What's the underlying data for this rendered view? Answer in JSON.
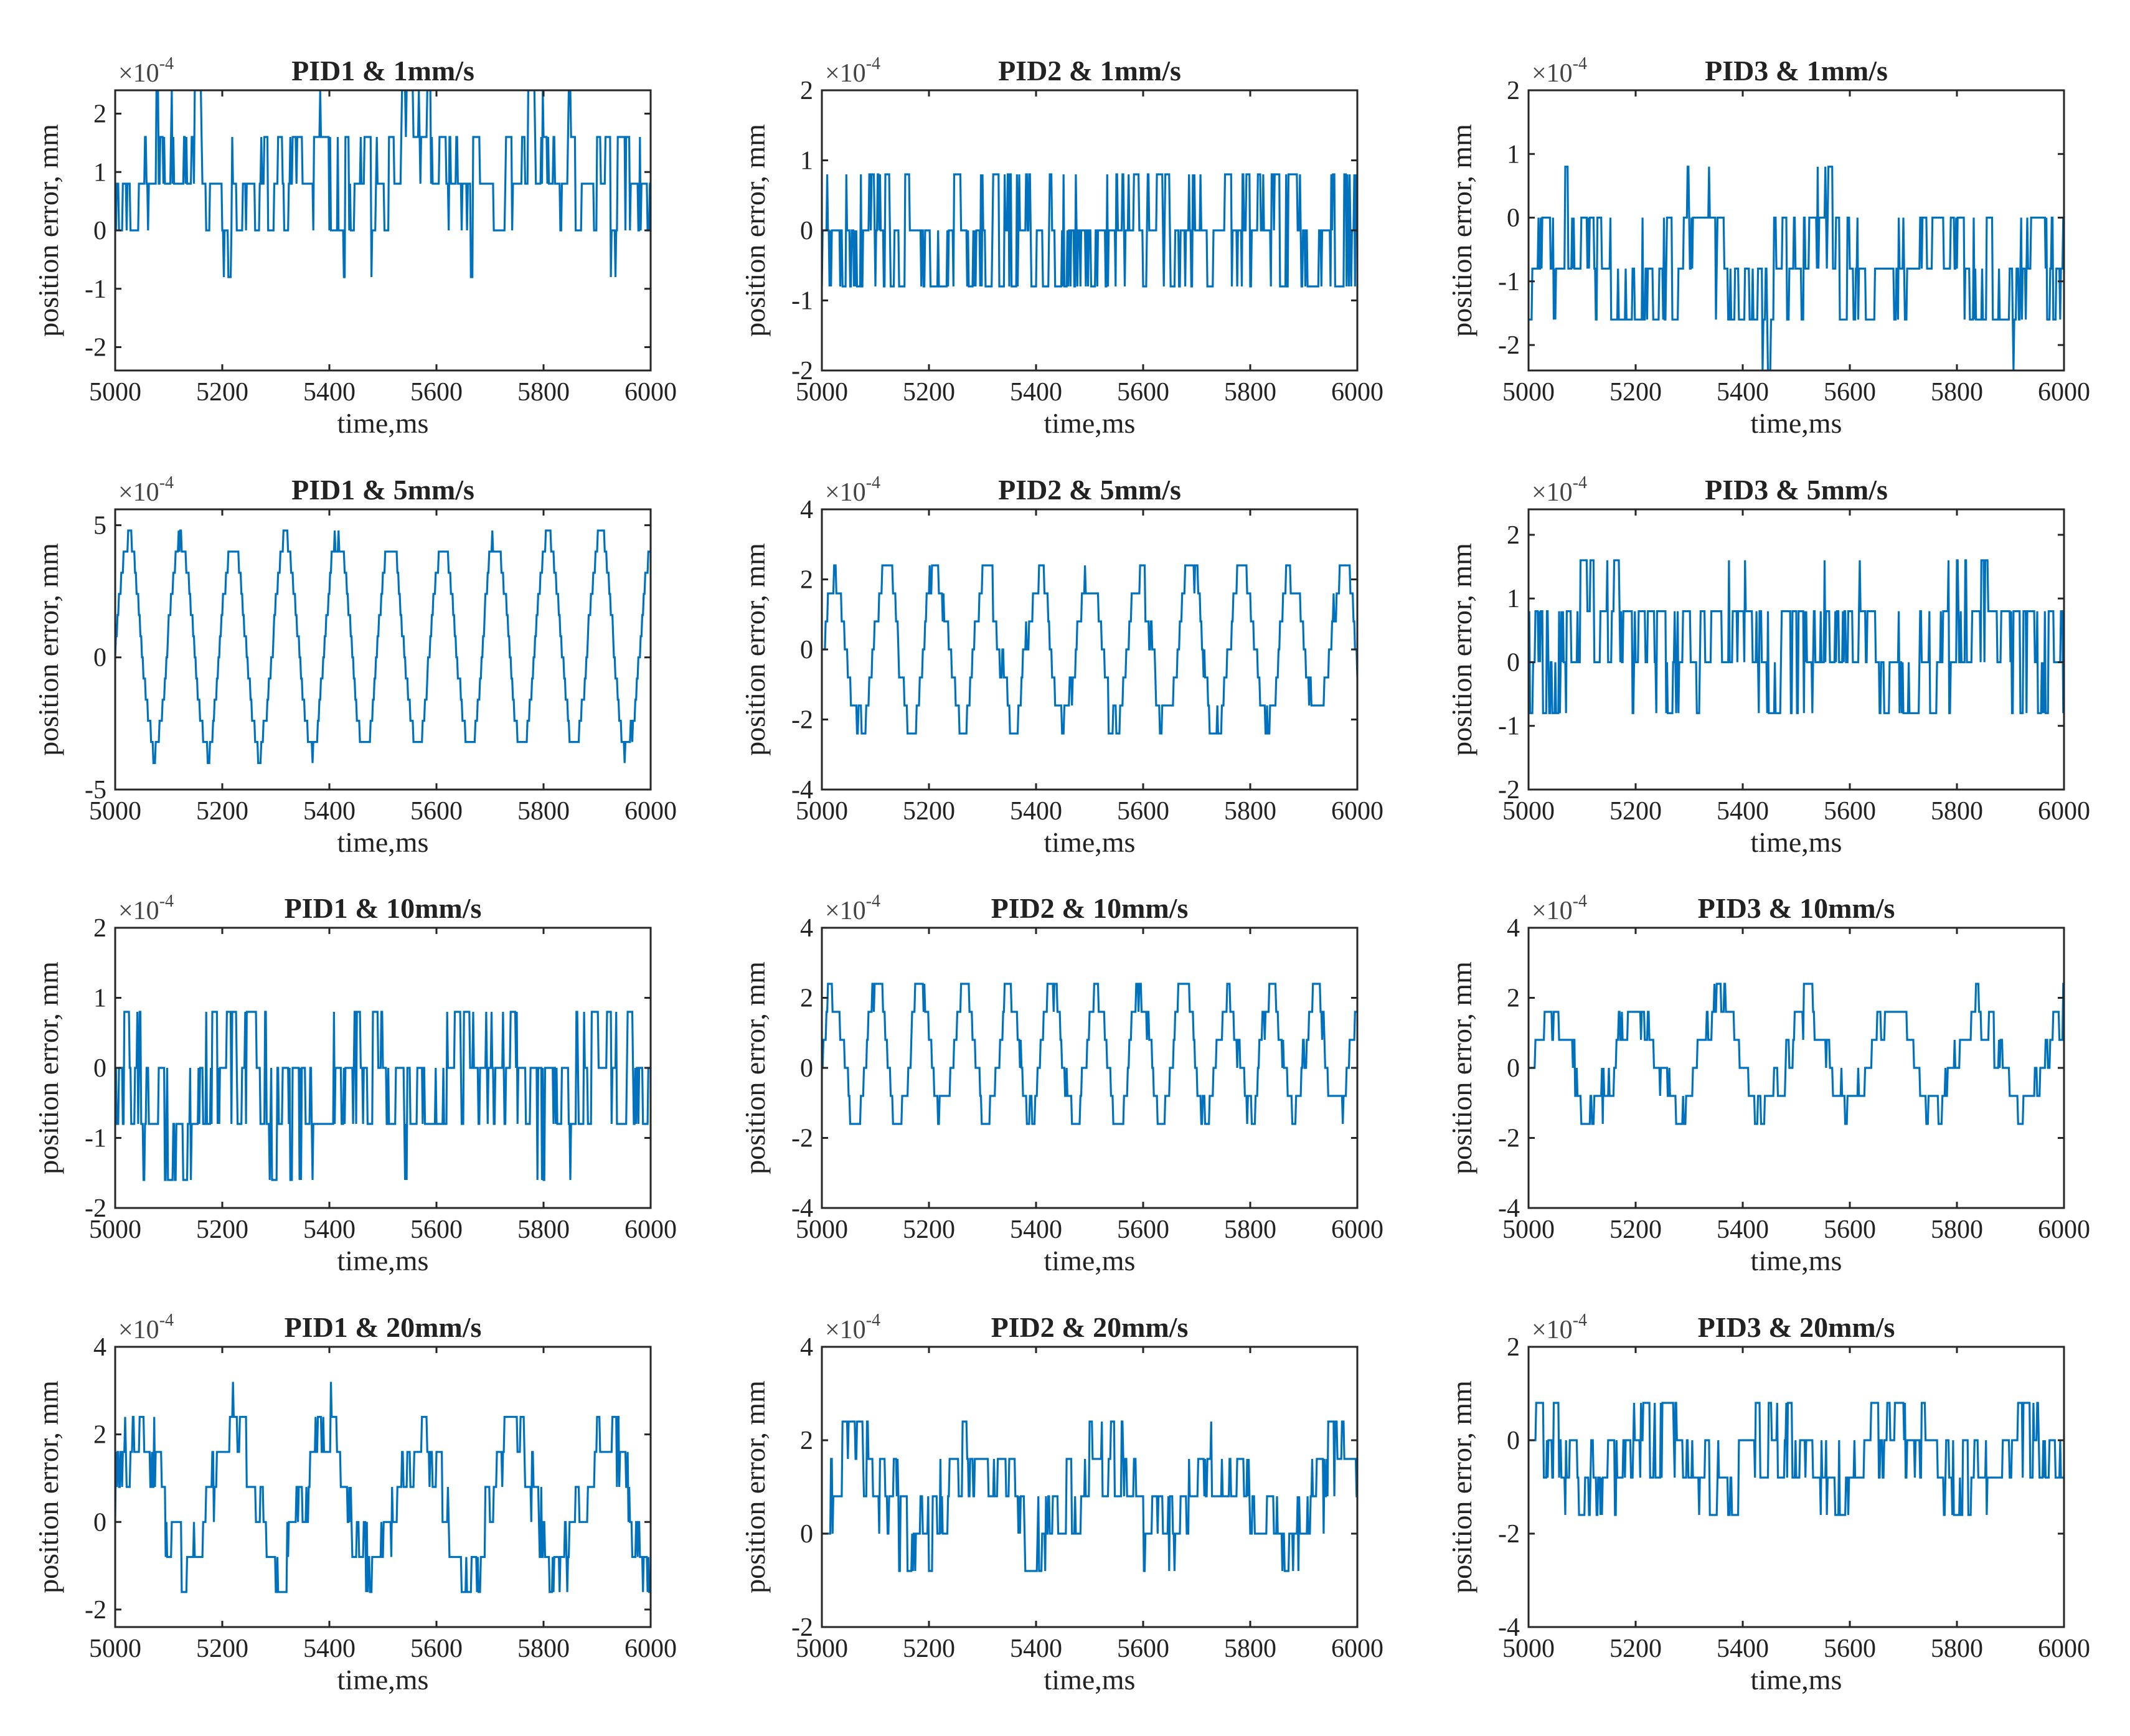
{
  "figure": {
    "colors": {
      "series": "#0072BD",
      "axis": "#262626",
      "background": "#ffffff"
    }
  },
  "chart_data": [
    {
      "type": "line",
      "title": "PID1 & 1mm/s",
      "xlabel": "time,ms",
      "ylabel": "position error, mm",
      "y_multiplier": "×10",
      "y_multiplier_exp": "-4",
      "xlim": [
        5000,
        6000
      ],
      "ylim": [
        -2.4,
        2.4
      ],
      "xticks": [
        5000,
        5200,
        5400,
        5600,
        5800,
        6000
      ],
      "yticks": [
        -2,
        -1,
        0,
        1,
        2
      ],
      "ytick_labels": [
        "-2",
        "-1",
        "0",
        "1",
        "2"
      ],
      "series": [
        {
          "name": "position error",
          "seed": 11,
          "amp": 0.8,
          "period": 0,
          "offset": 0.9,
          "noise": 1.0,
          "step": 0.8,
          "burst": 0.55
        }
      ]
    },
    {
      "type": "line",
      "title": "PID2 & 1mm/s",
      "xlabel": "time,ms",
      "ylabel": "position error, mm",
      "y_multiplier": "×10",
      "y_multiplier_exp": "-4",
      "xlim": [
        5000,
        6000
      ],
      "ylim": [
        -2,
        2
      ],
      "xticks": [
        5000,
        5200,
        5400,
        5600,
        5800,
        6000
      ],
      "yticks": [
        -2,
        -1,
        0,
        1,
        2
      ],
      "ytick_labels": [
        "-2",
        "-1",
        "0",
        "1",
        "2"
      ],
      "series": [
        {
          "name": "position error",
          "seed": 23,
          "amp": 0.3,
          "period": 0,
          "offset": -0.1,
          "noise": 0.9,
          "step": 0.8,
          "burst": 0.75
        }
      ]
    },
    {
      "type": "line",
      "title": "PID3 & 1mm/s",
      "xlabel": "time,ms",
      "ylabel": "position error, mm",
      "y_multiplier": "×10",
      "y_multiplier_exp": "-4",
      "xlim": [
        5000,
        6000
      ],
      "ylim": [
        -2.4,
        2
      ],
      "xticks": [
        5000,
        5200,
        5400,
        5600,
        5800,
        6000
      ],
      "yticks": [
        -2,
        -1,
        0,
        1,
        2
      ],
      "ytick_labels": [
        "-2",
        "-1",
        "0",
        "1",
        "2"
      ],
      "series": [
        {
          "name": "position error",
          "seed": 37,
          "amp": 0.6,
          "period": 0,
          "offset": -0.8,
          "noise": 0.9,
          "step": 0.8,
          "burst": 0.5
        }
      ]
    },
    {
      "type": "line",
      "title": "PID1 & 5mm/s",
      "xlabel": "time,ms",
      "ylabel": "position error, mm",
      "y_multiplier": "×10",
      "y_multiplier_exp": "-4",
      "xlim": [
        5000,
        6000
      ],
      "ylim": [
        -5,
        5.6
      ],
      "xticks": [
        5000,
        5200,
        5400,
        5600,
        5800,
        6000
      ],
      "yticks": [
        -5,
        0,
        5
      ],
      "ytick_labels": [
        "-5",
        "0",
        "5"
      ],
      "series": [
        {
          "name": "position error",
          "seed": 41,
          "amp": 4.0,
          "period": 98,
          "offset": 0.5,
          "noise": 0.3,
          "step": 0.8,
          "burst": 0.1
        }
      ]
    },
    {
      "type": "line",
      "title": "PID2 & 5mm/s",
      "xlabel": "time,ms",
      "ylabel": "position error, mm",
      "y_multiplier": "×10",
      "y_multiplier_exp": "-4",
      "xlim": [
        5000,
        6000
      ],
      "ylim": [
        -4,
        4
      ],
      "xticks": [
        5000,
        5200,
        5400,
        5600,
        5800,
        6000
      ],
      "yticks": [
        -4,
        -2,
        0,
        2,
        4
      ],
      "ytick_labels": [
        "-4",
        "-2",
        "0",
        "2",
        "4"
      ],
      "series": [
        {
          "name": "position error",
          "seed": 53,
          "amp": 2.2,
          "period": 95,
          "offset": 0.0,
          "noise": 0.6,
          "step": 0.8,
          "burst": 0.2
        }
      ]
    },
    {
      "type": "line",
      "title": "PID3 & 5mm/s",
      "xlabel": "time,ms",
      "ylabel": "position error, mm",
      "y_multiplier": "×10",
      "y_multiplier_exp": "-4",
      "xlim": [
        5000,
        6000
      ],
      "ylim": [
        -2,
        2.4
      ],
      "xticks": [
        5000,
        5200,
        5400,
        5600,
        5800,
        6000
      ],
      "yticks": [
        -2,
        -1,
        0,
        1,
        2
      ],
      "ytick_labels": [
        "-2",
        "-1",
        "0",
        "1",
        "2"
      ],
      "series": [
        {
          "name": "position error",
          "seed": 67,
          "amp": 0.4,
          "period": 0,
          "offset": 0.3,
          "noise": 0.9,
          "step": 0.8,
          "burst": 0.6
        }
      ]
    },
    {
      "type": "line",
      "title": "PID1 & 10mm/s",
      "xlabel": "time,ms",
      "ylabel": "position error, mm",
      "y_multiplier": "×10",
      "y_multiplier_exp": "-4",
      "xlim": [
        5000,
        6000
      ],
      "ylim": [
        -2,
        2
      ],
      "xticks": [
        5000,
        5200,
        5400,
        5600,
        5800,
        6000
      ],
      "yticks": [
        -2,
        -1,
        0,
        1,
        2
      ],
      "ytick_labels": [
        "-2",
        "-1",
        "0",
        "1",
        "2"
      ],
      "series": [
        {
          "name": "position error",
          "seed": 71,
          "amp": 0.5,
          "period": 0,
          "offset": -0.3,
          "noise": 0.9,
          "step": 0.8,
          "burst": 0.65
        }
      ]
    },
    {
      "type": "line",
      "title": "PID2 & 10mm/s",
      "xlabel": "time,ms",
      "ylabel": "position error, mm",
      "y_multiplier": "×10",
      "y_multiplier_exp": "-4",
      "xlim": [
        5000,
        6000
      ],
      "ylim": [
        -4,
        4
      ],
      "xticks": [
        5000,
        5200,
        5400,
        5600,
        5800,
        6000
      ],
      "yticks": [
        -4,
        -2,
        0,
        2,
        4
      ],
      "ytick_labels": [
        "-4",
        "-2",
        "0",
        "2",
        "4"
      ],
      "series": [
        {
          "name": "position error",
          "seed": 83,
          "amp": 1.8,
          "period": 82,
          "offset": 0.4,
          "noise": 0.5,
          "step": 0.8,
          "burst": 0.15
        }
      ]
    },
    {
      "type": "line",
      "title": "PID3 & 10mm/s",
      "xlabel": "time,ms",
      "ylabel": "position error, mm",
      "y_multiplier": "×10",
      "y_multiplier_exp": "-4",
      "xlim": [
        5000,
        6000
      ],
      "ylim": [
        -4,
        4
      ],
      "xticks": [
        5000,
        5200,
        5400,
        5600,
        5800,
        6000
      ],
      "yticks": [
        -4,
        -2,
        0,
        2,
        4
      ],
      "ytick_labels": [
        "-4",
        "-2",
        "0",
        "2",
        "4"
      ],
      "series": [
        {
          "name": "position error",
          "seed": 97,
          "amp": 1.4,
          "period": 160,
          "offset": 0.2,
          "noise": 0.6,
          "step": 0.8,
          "burst": 0.3
        }
      ]
    },
    {
      "type": "line",
      "title": "PID1 & 20mm/s",
      "xlabel": "time,ms",
      "ylabel": "position error, mm",
      "y_multiplier": "×10",
      "y_multiplier_exp": "-4",
      "xlim": [
        5000,
        6000
      ],
      "ylim": [
        -2.4,
        4
      ],
      "xticks": [
        5000,
        5200,
        5400,
        5600,
        5800,
        6000
      ],
      "yticks": [
        -2,
        0,
        2,
        4
      ],
      "ytick_labels": [
        "-2",
        "0",
        "2",
        "4"
      ],
      "series": [
        {
          "name": "position error",
          "seed": 101,
          "amp": 1.6,
          "period": 175,
          "offset": 0.5,
          "noise": 0.8,
          "step": 0.8,
          "burst": 0.45
        }
      ]
    },
    {
      "type": "line",
      "title": "PID2 & 20mm/s",
      "xlabel": "time,ms",
      "ylabel": "position error, mm",
      "y_multiplier": "×10",
      "y_multiplier_exp": "-4",
      "xlim": [
        5000,
        6000
      ],
      "ylim": [
        -2,
        4
      ],
      "xticks": [
        5000,
        5200,
        5400,
        5600,
        5800,
        6000
      ],
      "yticks": [
        -2,
        0,
        2,
        4
      ],
      "ytick_labels": [
        "-2",
        "0",
        "2",
        "4"
      ],
      "series": [
        {
          "name": "position error",
          "seed": 113,
          "amp": 1.0,
          "period": 0,
          "offset": 0.8,
          "noise": 0.9,
          "step": 0.8,
          "burst": 0.55
        }
      ]
    },
    {
      "type": "line",
      "title": "PID3 & 20mm/s",
      "xlabel": "time,ms",
      "ylabel": "position error, mm",
      "y_multiplier": "×10",
      "y_multiplier_exp": "-4",
      "xlim": [
        5000,
        6000
      ],
      "ylim": [
        -4,
        2
      ],
      "xticks": [
        5000,
        5200,
        5400,
        5600,
        5800,
        6000
      ],
      "yticks": [
        -4,
        -2,
        0,
        2
      ],
      "ytick_labels": [
        "-4",
        "-2",
        "0",
        "2"
      ],
      "series": [
        {
          "name": "position error",
          "seed": 127,
          "amp": 0.8,
          "period": 0,
          "offset": -0.4,
          "noise": 0.9,
          "step": 0.8,
          "burst": 0.6
        }
      ]
    }
  ]
}
